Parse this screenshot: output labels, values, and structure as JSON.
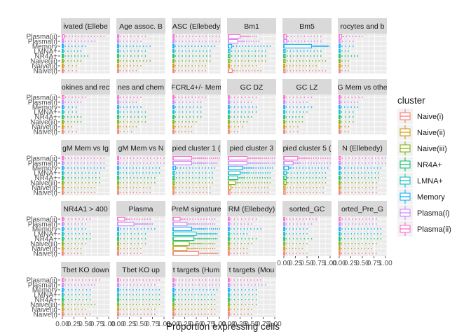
{
  "chart_data": {
    "type": "boxplot-faceted",
    "xlabel": "Proportion expressing cells",
    "ylabel": "",
    "xlim": [
      0,
      1
    ],
    "x_ticks": [
      "0.00",
      "0.25",
      "0.50",
      "0.75",
      "1.00"
    ],
    "categories": [
      "Plasma(ii)",
      "Plasma(i)",
      "Memory",
      "LMNA+",
      "NR4A+",
      "Naive(iii)",
      "Naive(ii)",
      "Naive(i)"
    ],
    "legend": {
      "title": "cluster",
      "placement": "right",
      "entries": [
        {
          "name": "Naive(i)",
          "color": "#F8766D"
        },
        {
          "name": "Naive(ii)",
          "color": "#CD9600"
        },
        {
          "name": "Naive(iii)",
          "color": "#7CAE00"
        },
        {
          "name": "NR4A+",
          "color": "#00BE67"
        },
        {
          "name": "LMNA+",
          "color": "#00BFC4"
        },
        {
          "name": "Memory",
          "color": "#00A9FF"
        },
        {
          "name": "Plasma(i)",
          "color": "#C77CFF"
        },
        {
          "name": "Plasma(ii)",
          "color": "#FF61CC"
        }
      ]
    },
    "facets": [
      {
        "title": "ivated (Ellebe",
        "q3": [
          0.04,
          0.02,
          0.02,
          0.01,
          0.02,
          0.01,
          0.01,
          0.01
        ],
        "out": [
          0.9,
          0.7,
          0.5,
          0.4,
          0.55,
          0.4,
          0.3,
          0.3
        ]
      },
      {
        "title": "Age assoc. B",
        "q3": [
          0.01,
          0.01,
          0.01,
          0.01,
          0.01,
          0.01,
          0.01,
          0.01
        ],
        "out": [
          0.6,
          0.5,
          0.7,
          0.6,
          0.6,
          0.7,
          0.5,
          0.4
        ]
      },
      {
        "title": "ASC (Ellebedy",
        "q3": [
          0.03,
          0.02,
          0.01,
          0.01,
          0.01,
          0.01,
          0.01,
          0.01
        ],
        "out": [
          1.0,
          1.0,
          0.9,
          0.8,
          0.8,
          0.8,
          0.7,
          0.7
        ]
      },
      {
        "title": "Bm1",
        "q3": [
          0.25,
          0.2,
          0.07,
          0.03,
          0.03,
          0.03,
          0.02,
          0.08
        ],
        "out": [
          0.6,
          0.65,
          0.9,
          0.8,
          0.8,
          0.8,
          0.6,
          0.7
        ]
      },
      {
        "title": "Bm5",
        "q3": [
          0.05,
          0.06,
          0.6,
          0.03,
          0.03,
          0.03,
          0.02,
          0.03
        ],
        "out": [
          0.8,
          0.8,
          0.95,
          0.8,
          0.8,
          0.9,
          0.7,
          0.9
        ]
      },
      {
        "title": "rocytes and b",
        "q3": [
          0.05,
          0.03,
          0.02,
          0.02,
          0.02,
          0.02,
          0.02,
          0.02
        ],
        "out": [
          0.5,
          0.3,
          0.3,
          0.2,
          0.4,
          0.2,
          0.2,
          0.2
        ]
      },
      {
        "title": "okines and rec",
        "q3": [
          0.03,
          0.02,
          0.01,
          0.01,
          0.01,
          0.01,
          0.01,
          0.01
        ],
        "out": [
          0.5,
          0.4,
          0.3,
          0.3,
          0.4,
          0.4,
          0.2,
          0.3
        ]
      },
      {
        "title": "nes and chem",
        "q3": [
          0.01,
          0.01,
          0.01,
          0.01,
          0.01,
          0.01,
          0.01,
          0.01
        ],
        "out": [
          0.5,
          0.4,
          0.5,
          0.6,
          0.6,
          0.6,
          0.4,
          0.3
        ]
      },
      {
        "title": "FCRL4+/- Mem",
        "q3": [
          0.01,
          0.01,
          0.01,
          0.01,
          0.01,
          0.01,
          0.01,
          0.01
        ],
        "out": [
          0.7,
          0.6,
          0.6,
          0.6,
          0.6,
          0.5,
          0.4,
          0.4
        ]
      },
      {
        "title": "GC DZ",
        "q3": [
          0.01,
          0.01,
          0.01,
          0.01,
          0.01,
          0.01,
          0.01,
          0.01
        ],
        "out": [
          0.6,
          0.5,
          0.6,
          0.6,
          0.5,
          0.4,
          0.3,
          0.2
        ]
      },
      {
        "title": "GC LZ",
        "q3": [
          0.01,
          0.01,
          0.01,
          0.01,
          0.01,
          0.01,
          0.01,
          0.01
        ],
        "out": [
          0.6,
          0.5,
          0.6,
          0.5,
          0.4,
          0.4,
          0.3,
          0.3
        ]
      },
      {
        "title": "G Mem vs othe",
        "q3": [
          0.01,
          0.01,
          0.01,
          0.01,
          0.01,
          0.01,
          0.01,
          0.01
        ],
        "out": [
          0.5,
          0.4,
          0.4,
          0.3,
          0.3,
          0.3,
          0.2,
          0.2
        ]
      },
      {
        "title": "gM Mem vs Ig",
        "q3": [
          0.02,
          0.01,
          0.01,
          0.01,
          0.01,
          0.01,
          0.01,
          0.01
        ],
        "out": [
          0.9,
          0.9,
          0.9,
          0.8,
          0.8,
          0.8,
          0.7,
          0.7
        ]
      },
      {
        "title": "gM Mem vs N",
        "q3": [
          0.02,
          0.01,
          0.01,
          0.01,
          0.01,
          0.01,
          0.01,
          0.01
        ],
        "out": [
          1.0,
          1.0,
          0.9,
          0.9,
          0.8,
          0.8,
          0.7,
          0.7
        ]
      },
      {
        "title": "pied cluster 1 (",
        "q3": [
          0.4,
          0.4,
          0.05,
          0.03,
          0.03,
          0.03,
          0.02,
          0.02
        ],
        "out": [
          1.0,
          0.95,
          0.9,
          0.85,
          0.85,
          0.85,
          0.8,
          0.8
        ]
      },
      {
        "title": "pied cluster 3",
        "q3": [
          0.4,
          0.4,
          0.3,
          0.25,
          0.2,
          0.15,
          0.05,
          0.03
        ],
        "out": [
          1.0,
          1.0,
          0.95,
          0.9,
          0.9,
          0.9,
          0.85,
          0.85
        ]
      },
      {
        "title": "pied cluster 5 (",
        "q3": [
          0.3,
          0.2,
          0.1,
          0.05,
          0.05,
          0.05,
          0.03,
          0.03
        ],
        "out": [
          1.0,
          1.0,
          0.95,
          0.9,
          0.9,
          0.9,
          0.85,
          0.85
        ]
      },
      {
        "title": "N (Ellebedy)",
        "q3": [
          0.03,
          0.02,
          0.01,
          0.01,
          0.01,
          0.01,
          0.01,
          0.01
        ],
        "out": [
          1.0,
          1.0,
          0.9,
          0.85,
          0.85,
          0.8,
          0.8,
          0.8
        ]
      },
      {
        "title": "NR4A1 > 400",
        "q3": [
          0.01,
          0.01,
          0.01,
          0.01,
          0.01,
          0.01,
          0.01,
          0.01
        ],
        "out": [
          0.6,
          0.5,
          0.5,
          0.6,
          0.6,
          0.5,
          0.4,
          0.4
        ]
      },
      {
        "title": "Plasma",
        "q3": [
          0.15,
          0.35,
          0.02,
          0.02,
          0.02,
          0.02,
          0.02,
          0.02
        ],
        "out": [
          0.7,
          0.75,
          0.8,
          0.6,
          0.6,
          0.6,
          0.5,
          0.5
        ]
      },
      {
        "title": "PreM signature",
        "q3": [
          0.15,
          0.3,
          0.4,
          0.5,
          0.45,
          0.35,
          0.3,
          0.55
        ],
        "out": [
          0.9,
          0.9,
          1.0,
          0.95,
          0.95,
          0.9,
          0.9,
          0.95
        ]
      },
      {
        "title": "RM (Ellebedy)",
        "q3": [
          0.01,
          0.01,
          0.01,
          0.01,
          0.01,
          0.01,
          0.01,
          0.01
        ],
        "out": [
          0.6,
          0.5,
          0.7,
          0.4,
          0.6,
          0.5,
          0.4,
          0.4
        ]
      },
      {
        "title": "sorted_GC",
        "q3": [
          0.02,
          0.01,
          0.01,
          0.01,
          0.01,
          0.01,
          0.01,
          0.01
        ],
        "out": [
          0.7,
          0.6,
          0.5,
          0.5,
          0.6,
          0.5,
          0.4,
          0.5
        ]
      },
      {
        "title": "orted_Pre_G",
        "q3": [
          0.03,
          0.02,
          0.02,
          0.01,
          0.01,
          0.01,
          0.01,
          0.01
        ],
        "out": [
          0.8,
          0.8,
          0.9,
          0.9,
          0.9,
          0.8,
          0.7,
          0.8
        ]
      },
      {
        "title": "Tbet KO down",
        "q3": [
          0.03,
          0.02,
          0.01,
          0.01,
          0.01,
          0.01,
          0.01,
          0.01
        ],
        "out": [
          0.8,
          0.7,
          0.6,
          0.6,
          0.6,
          0.7,
          0.5,
          0.6
        ]
      },
      {
        "title": "Tbet KO up",
        "q3": [
          0.02,
          0.01,
          0.01,
          0.01,
          0.01,
          0.01,
          0.01,
          0.01
        ],
        "out": [
          0.9,
          0.8,
          0.9,
          0.9,
          0.9,
          0.9,
          0.8,
          0.8
        ]
      },
      {
        "title": "t targets (Hum",
        "q3": [
          0.02,
          0.01,
          0.01,
          0.01,
          0.01,
          0.01,
          0.01,
          0.01
        ],
        "out": [
          1.0,
          1.0,
          0.95,
          0.9,
          0.9,
          0.9,
          0.9,
          0.9
        ]
      },
      {
        "title": "t targets (Mou",
        "q3": [
          0.01,
          0.01,
          0.01,
          0.01,
          0.01,
          0.01,
          0.01,
          0.01
        ],
        "out": [
          0.7,
          0.8,
          0.6,
          0.6,
          0.6,
          0.6,
          0.5,
          0.5
        ]
      }
    ]
  }
}
